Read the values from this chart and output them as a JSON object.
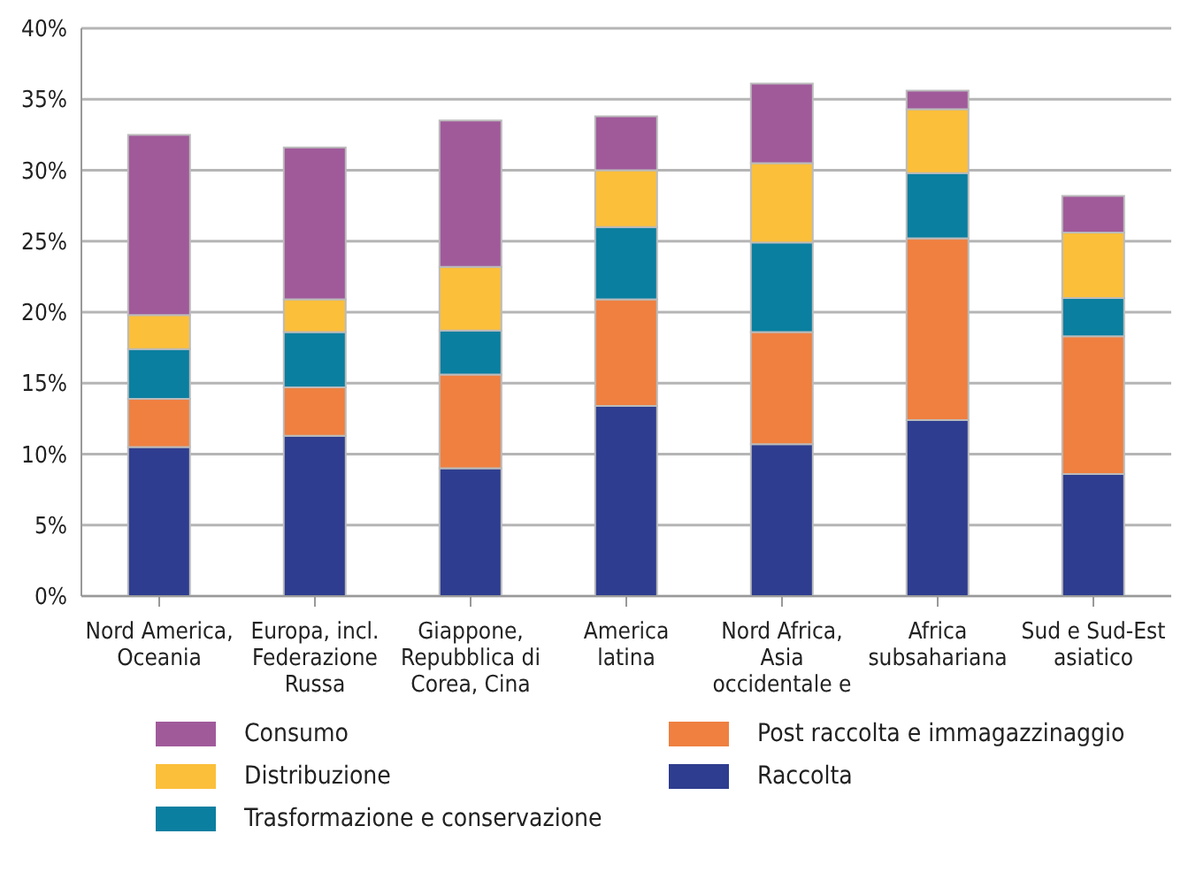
{
  "chart_data": {
    "type": "bar",
    "stacked": true,
    "categories": [
      "Nord America, Oceania",
      "Europa, incl. Federazione Russa",
      "Giappone, Repubblica di Corea, Cina",
      "America latina",
      "Nord Africa, Asia occidentale e",
      "Africa subsahariana",
      "Sud e Sud-Est asiatico"
    ],
    "series": [
      {
        "name": "Raccolta",
        "color": "#2e3d8f",
        "values": [
          10.5,
          11.3,
          9.0,
          13.4,
          10.7,
          12.4,
          8.6
        ]
      },
      {
        "name": "Post raccolta e immagazzinaggio",
        "color": "#ef8040",
        "values": [
          3.4,
          3.4,
          6.6,
          7.5,
          7.9,
          12.8,
          9.7
        ]
      },
      {
        "name": "Trasformazione e conservazione",
        "color": "#0a7fa0",
        "values": [
          3.5,
          3.9,
          3.1,
          5.1,
          6.3,
          4.6,
          2.7
        ]
      },
      {
        "name": "Distribuzione",
        "color": "#fbbf3a",
        "values": [
          2.4,
          2.3,
          4.5,
          4.0,
          5.6,
          4.5,
          4.6
        ]
      },
      {
        "name": "Consumo",
        "color": "#a05a9a",
        "values": [
          12.7,
          10.7,
          10.3,
          3.8,
          5.6,
          1.3,
          2.6
        ]
      }
    ],
    "ylim": [
      0,
      40
    ],
    "yticks": [
      {
        "value": 0,
        "label": "0%"
      },
      {
        "value": 5,
        "label": "5%"
      },
      {
        "value": 10,
        "label": "10%"
      },
      {
        "value": 15,
        "label": "15%"
      },
      {
        "value": 20,
        "label": "20%"
      },
      {
        "value": 25,
        "label": "25%"
      },
      {
        "value": 30,
        "label": "30%"
      },
      {
        "value": 35,
        "label": "35%"
      },
      {
        "value": 40,
        "label": "40%"
      }
    ],
    "grid": "y",
    "legend": "bottom"
  }
}
